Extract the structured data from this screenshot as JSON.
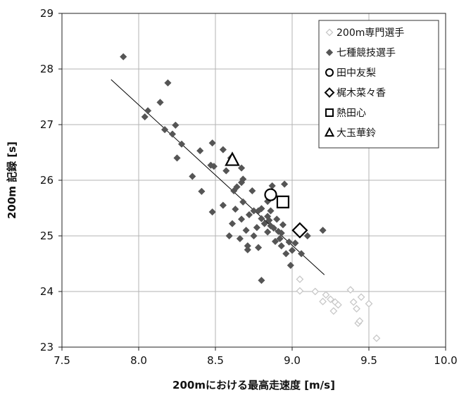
{
  "chart_data": {
    "type": "scatter",
    "title": "",
    "xlabel": "200mにおける最高走速度 [m/s]",
    "ylabel": "200m 記録 [s]",
    "xlim": [
      7.5,
      10.0
    ],
    "ylim": [
      23,
      29
    ],
    "x_ticks": [
      "7.5",
      "8.0",
      "8.5",
      "9.0",
      "9.5",
      "10.0"
    ],
    "y_ticks": [
      "23",
      "24",
      "25",
      "26",
      "27",
      "28",
      "29"
    ],
    "grid": true,
    "legend_position": "top-right",
    "colors": {
      "specialist": "#c8c8c8",
      "heptathlon": "#555555",
      "highlight": "#000000",
      "trendline": "#000000",
      "grid": "#b3b3b3"
    },
    "series": [
      {
        "name": "200m専門選手",
        "marker": "diamond-open",
        "points": [
          [
            9.05,
            24.22
          ],
          [
            9.05,
            24.01
          ],
          [
            9.15,
            24.0
          ],
          [
            9.2,
            23.82
          ],
          [
            9.22,
            23.94
          ],
          [
            9.25,
            23.86
          ],
          [
            9.27,
            23.65
          ],
          [
            9.28,
            23.81
          ],
          [
            9.3,
            23.76
          ],
          [
            9.38,
            24.03
          ],
          [
            9.4,
            23.81
          ],
          [
            9.42,
            23.69
          ],
          [
            9.43,
            23.43
          ],
          [
            9.44,
            23.47
          ],
          [
            9.45,
            23.9
          ],
          [
            9.5,
            23.78
          ],
          [
            9.55,
            23.16
          ]
        ]
      },
      {
        "name": "七種競技選手",
        "marker": "diamond-filled",
        "points": [
          [
            7.9,
            28.22
          ],
          [
            8.04,
            27.14
          ],
          [
            8.06,
            27.25
          ],
          [
            8.14,
            27.4
          ],
          [
            8.17,
            26.91
          ],
          [
            8.19,
            27.75
          ],
          [
            8.22,
            26.83
          ],
          [
            8.24,
            26.99
          ],
          [
            8.25,
            26.4
          ],
          [
            8.28,
            26.65
          ],
          [
            8.35,
            26.07
          ],
          [
            8.4,
            26.53
          ],
          [
            8.41,
            25.8
          ],
          [
            8.47,
            26.27
          ],
          [
            8.48,
            25.43
          ],
          [
            8.48,
            26.67
          ],
          [
            8.49,
            26.25
          ],
          [
            8.55,
            26.55
          ],
          [
            8.55,
            25.55
          ],
          [
            8.57,
            26.17
          ],
          [
            8.59,
            25.0
          ],
          [
            8.6,
            26.4
          ],
          [
            8.61,
            25.22
          ],
          [
            8.62,
            25.81
          ],
          [
            8.63,
            25.48
          ],
          [
            8.64,
            25.88
          ],
          [
            8.66,
            24.95
          ],
          [
            8.67,
            25.3
          ],
          [
            8.67,
            25.96
          ],
          [
            8.67,
            26.22
          ],
          [
            8.68,
            25.61
          ],
          [
            8.68,
            26.02
          ],
          [
            8.7,
            25.1
          ],
          [
            8.71,
            24.75
          ],
          [
            8.71,
            24.82
          ],
          [
            8.72,
            25.38
          ],
          [
            8.74,
            25.81
          ],
          [
            8.75,
            25.45
          ],
          [
            8.75,
            25.0
          ],
          [
            8.77,
            25.15
          ],
          [
            8.78,
            25.45
          ],
          [
            8.78,
            24.79
          ],
          [
            8.8,
            25.31
          ],
          [
            8.8,
            25.49
          ],
          [
            8.8,
            24.2
          ],
          [
            8.82,
            25.22
          ],
          [
            8.84,
            25.35
          ],
          [
            8.84,
            25.62
          ],
          [
            8.84,
            25.07
          ],
          [
            8.85,
            25.28
          ],
          [
            8.86,
            25.18
          ],
          [
            8.86,
            25.45
          ],
          [
            8.87,
            25.9
          ],
          [
            8.88,
            25.14
          ],
          [
            8.89,
            24.9
          ],
          [
            8.9,
            25.3
          ],
          [
            8.91,
            25.08
          ],
          [
            8.92,
            24.95
          ],
          [
            8.93,
            24.82
          ],
          [
            8.93,
            25.05
          ],
          [
            8.94,
            25.2
          ],
          [
            8.95,
            25.93
          ],
          [
            8.96,
            24.68
          ],
          [
            8.98,
            24.89
          ],
          [
            8.99,
            24.47
          ],
          [
            9.0,
            24.74
          ],
          [
            9.02,
            24.87
          ],
          [
            9.06,
            24.68
          ],
          [
            9.1,
            25.0
          ],
          [
            9.2,
            25.1
          ]
        ]
      },
      {
        "name": "田中友梨",
        "marker": "circle-open",
        "points": [
          [
            8.86,
            25.74
          ]
        ]
      },
      {
        "name": "梶木菜々香",
        "marker": "diamond-open-large",
        "points": [
          [
            9.05,
            25.1
          ]
        ]
      },
      {
        "name": "熱田心",
        "marker": "square-open",
        "points": [
          [
            8.94,
            25.61
          ]
        ]
      },
      {
        "name": "大玉華鈴",
        "marker": "triangle-open",
        "points": [
          [
            8.61,
            26.36
          ]
        ]
      }
    ],
    "trendline": {
      "x": [
        7.82,
        9.21
      ],
      "y": [
        27.81,
        24.3
      ]
    }
  }
}
